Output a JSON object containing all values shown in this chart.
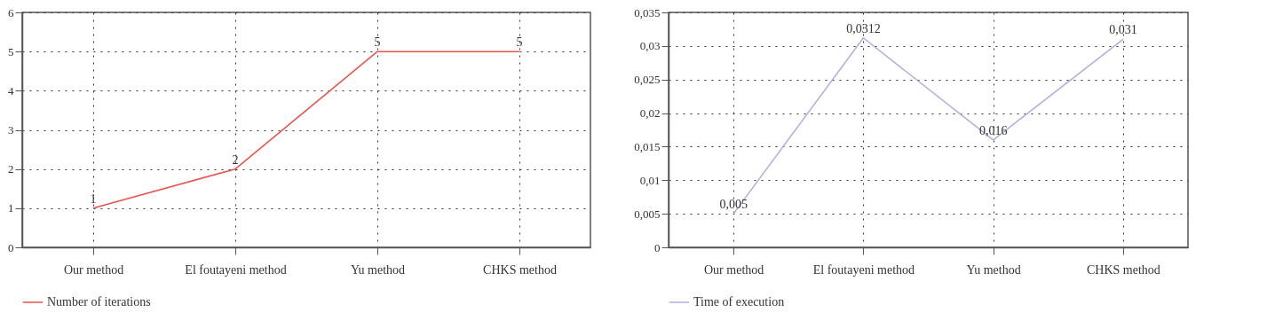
{
  "chart_data": [
    {
      "type": "line",
      "categories": [
        "Our method",
        "El foutayeni method",
        "Yu method",
        "CHKS method"
      ],
      "series": [
        {
          "name": "Number of iterations",
          "color": "#e8534a",
          "values": [
            1,
            2,
            5,
            5
          ]
        }
      ],
      "ylim": [
        0,
        6
      ],
      "yticks": [
        0,
        1,
        2,
        3,
        4,
        5,
        6
      ],
      "grid": true,
      "line_style": "solid",
      "legend": "bottom left",
      "data_labels": true
    },
    {
      "type": "line",
      "categories": [
        "Our method",
        "El foutayeni method",
        "Yu method",
        "CHKS method"
      ],
      "series": [
        {
          "name": "Time of execution",
          "color": "#aab0e0",
          "values": [
            0.005,
            0.0312,
            0.016,
            0.031
          ],
          "value_labels": [
            "0,005",
            "0,0312",
            "0,016",
            "0,031"
          ]
        }
      ],
      "ylim": [
        0,
        0.035
      ],
      "yticks": [
        0,
        {
          "value": 0.005,
          "label": "0,005"
        },
        {
          "value": 0.01,
          "label": "0,01"
        },
        {
          "value": 0.015,
          "label": "0,015"
        },
        {
          "value": 0.02,
          "label": "0,02"
        },
        {
          "value": 0.025,
          "label": "0,025"
        },
        {
          "value": 0.03,
          "label": "0,03"
        },
        {
          "value": 0.035,
          "label": "0,035"
        }
      ],
      "grid": true,
      "line_style": "solid",
      "legend": "bottom left"
    }
  ]
}
